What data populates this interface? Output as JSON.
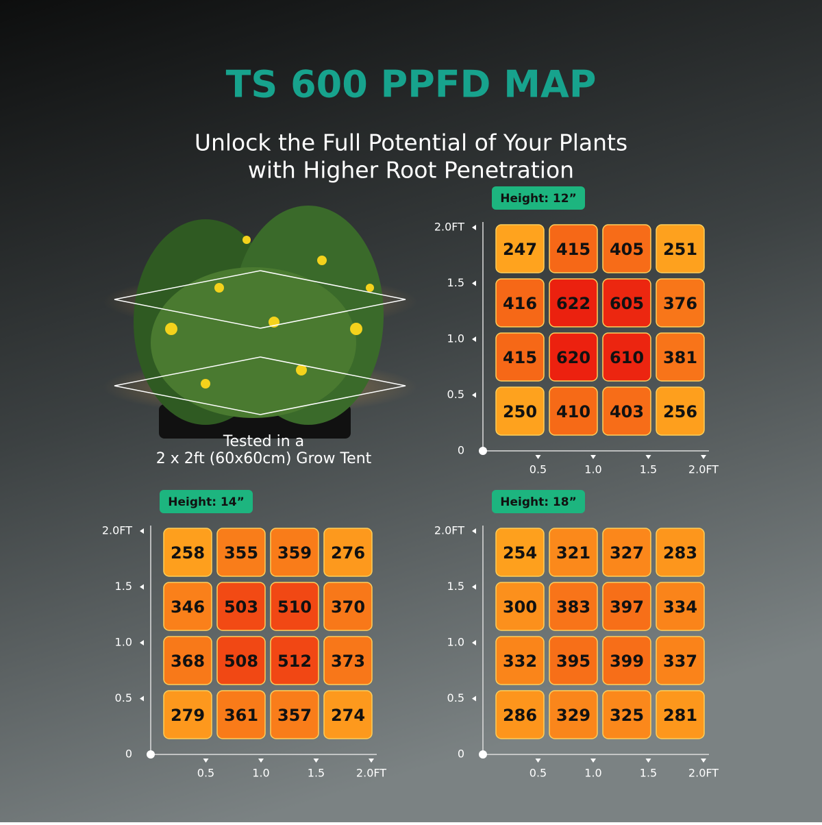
{
  "header": {
    "title": "TS 600 PPFD MAP",
    "subtitle": [
      "Unlock the Full Potential of Your Plants",
      "with Higher Root Penetration"
    ]
  },
  "caption": [
    "Tested in a",
    "2 x 2ft (60x60cm) Grow Tent"
  ],
  "chart_data": [
    {
      "type": "heatmap",
      "title": "Height: 12”",
      "values": [
        [
          247,
          415,
          405,
          251
        ],
        [
          416,
          622,
          605,
          376
        ],
        [
          415,
          620,
          610,
          381
        ],
        [
          250,
          410,
          403,
          256
        ]
      ],
      "xlim": [
        0,
        2
      ],
      "ylim": [
        0,
        2
      ],
      "xticks": [
        0.5,
        {
          "value": 1,
          "label": "1.0"
        },
        1.5,
        {
          "value": 2,
          "label": "2.0FT"
        }
      ],
      "yticks": [
        0,
        0.5,
        {
          "value": 1,
          "label": "1.0"
        },
        1.5,
        {
          "value": 2,
          "label": "2.0FT"
        }
      ]
    },
    {
      "type": "heatmap",
      "title": "Height: 14”",
      "values": [
        [
          258,
          355,
          359,
          276
        ],
        [
          346,
          503,
          510,
          370
        ],
        [
          368,
          508,
          512,
          373
        ],
        [
          279,
          361,
          357,
          274
        ]
      ],
      "xlim": [
        0,
        2
      ],
      "ylim": [
        0,
        2
      ],
      "xticks": [
        0.5,
        {
          "value": 1,
          "label": "1.0"
        },
        1.5,
        {
          "value": 2,
          "label": "2.0FT"
        }
      ],
      "yticks": [
        0,
        0.5,
        {
          "value": 1,
          "label": "1.0"
        },
        1.5,
        {
          "value": 2,
          "label": "2.0FT"
        }
      ]
    },
    {
      "type": "heatmap",
      "title": "Height: 18”",
      "values": [
        [
          254,
          321,
          327,
          283
        ],
        [
          300,
          383,
          397,
          334
        ],
        [
          332,
          395,
          399,
          337
        ],
        [
          286,
          329,
          325,
          281
        ]
      ],
      "xlim": [
        0,
        2
      ],
      "ylim": [
        0,
        2
      ],
      "xticks": [
        0.5,
        {
          "value": 1,
          "label": "1.0"
        },
        1.5,
        {
          "value": 2,
          "label": "2.0FT"
        }
      ],
      "yticks": [
        0,
        0.5,
        {
          "value": 1,
          "label": "1.0"
        },
        1.5,
        {
          "value": 2,
          "label": "2.0FT"
        }
      ]
    }
  ]
}
